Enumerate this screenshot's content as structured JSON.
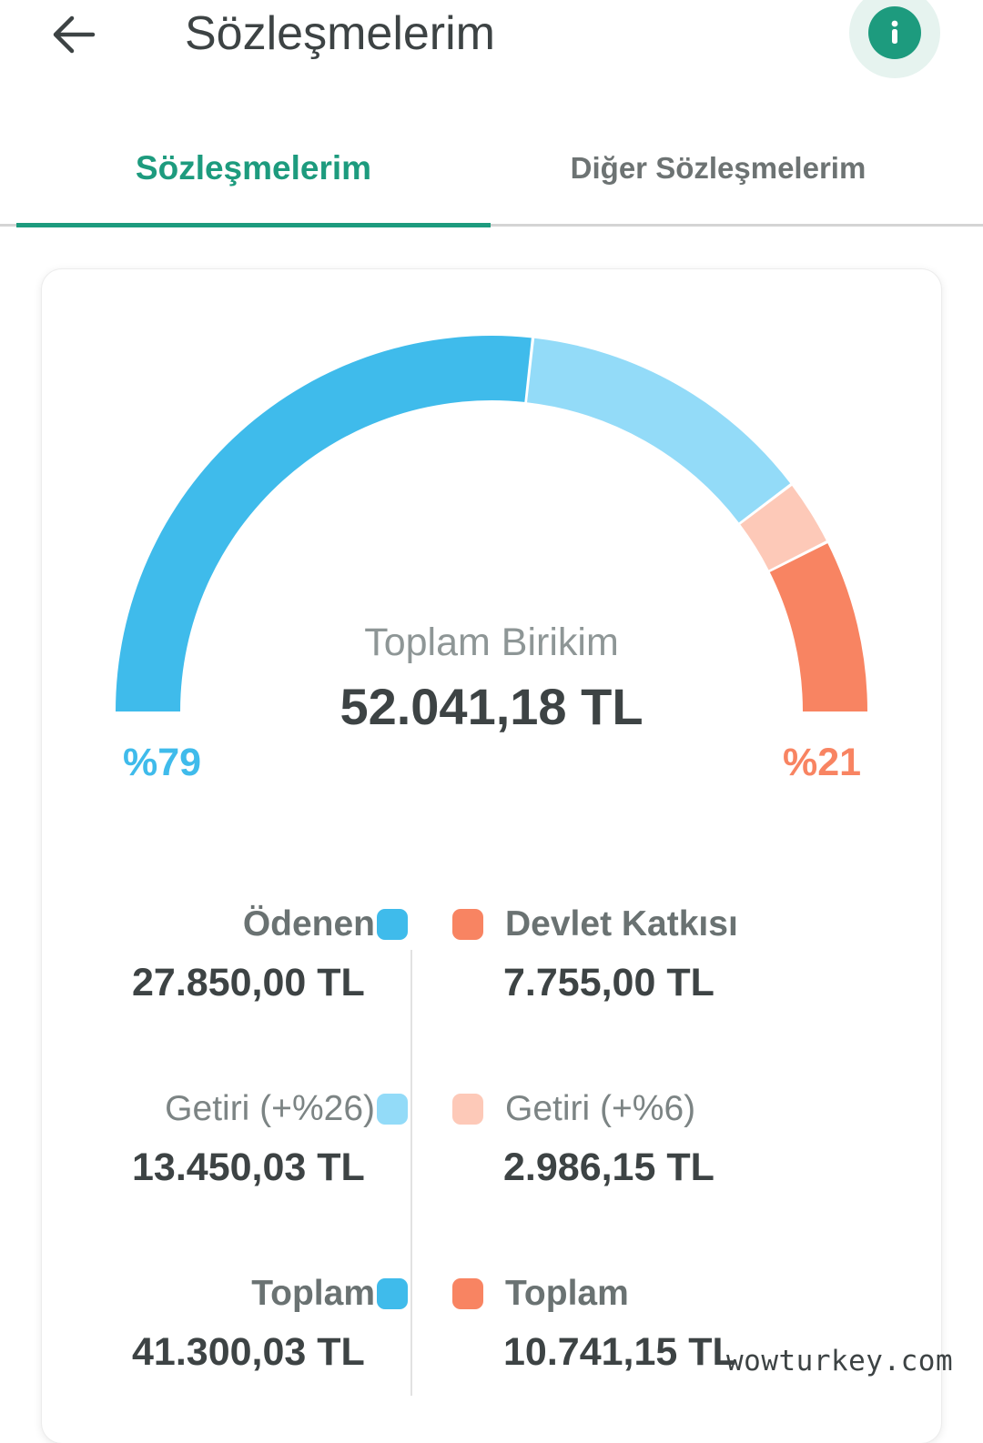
{
  "header": {
    "title": "Sözleşmelerim",
    "back_icon": "arrow-left-icon",
    "info_icon": "info-icon"
  },
  "tabs": [
    {
      "label": "Sözleşmelerim",
      "active": true
    },
    {
      "label": "Diğer Sözleşmelerim",
      "active": false
    }
  ],
  "summary": {
    "label": "Toplam Birikim",
    "value": "52.041,18 TL",
    "left_percent": "%79",
    "right_percent": "%21"
  },
  "gauge": {
    "segments": [
      {
        "name": "Ödenen",
        "value": 27850.0,
        "color": "#3fbbeb"
      },
      {
        "name": "Getiri (+%26)",
        "value": 13450.03,
        "color": "#93dbf8"
      },
      {
        "name": "Getiri (+%6)",
        "value": 2986.15,
        "color": "#fdc9b8"
      },
      {
        "name": "Devlet Katkısı",
        "value": 7755.0,
        "color": "#f88462"
      }
    ]
  },
  "left_column": [
    {
      "label": "Ödenen",
      "value": "27.850,00 TL",
      "color": "#3fbbeb"
    },
    {
      "label": "Getiri (+%26)",
      "value": "13.450,03 TL",
      "color": "#93dbf8"
    },
    {
      "label": "Toplam",
      "value": "41.300,03 TL",
      "color": "#3fbbeb"
    }
  ],
  "right_column": [
    {
      "label": "Devlet Katkısı",
      "value": "7.755,00 TL",
      "color": "#f88462"
    },
    {
      "label": "Getiri (+%6)",
      "value": "2.986,15 TL",
      "color": "#fdc9b8"
    },
    {
      "label": "Toplam",
      "value": "10.741,15 TL",
      "color": "#f88462"
    }
  ],
  "watermark": "wowturkey.com",
  "colors": {
    "accent": "#1d9b7e",
    "text": "#3d4344",
    "muted": "#8e9696"
  }
}
